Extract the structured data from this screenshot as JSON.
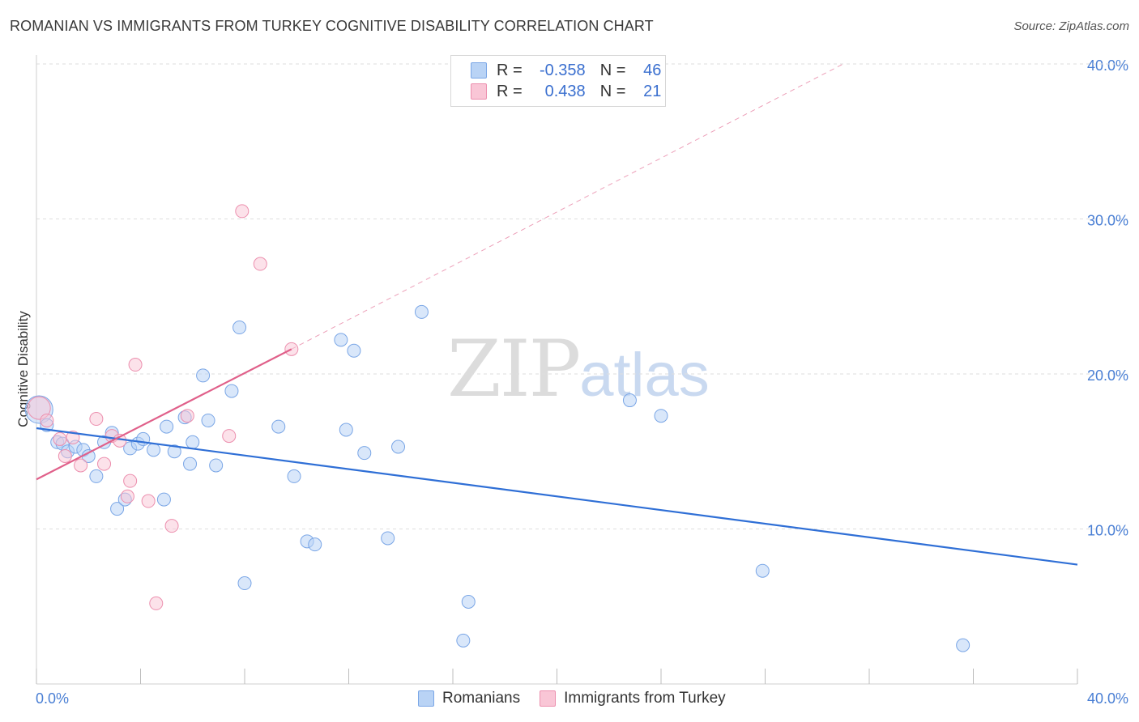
{
  "header": {
    "title": "ROMANIAN VS IMMIGRANTS FROM TURKEY COGNITIVE DISABILITY CORRELATION CHART",
    "source": "Source: ZipAtlas.com"
  },
  "watermark": {
    "zip": "ZIP",
    "atlas": "atlas"
  },
  "legend": {
    "r_label": "R =",
    "n_label": "N =",
    "rows": [
      {
        "r": "-0.358",
        "n": "46"
      },
      {
        "r": "0.438",
        "n": "21"
      }
    ]
  },
  "bottom_legend": {
    "items": [
      "Romanians",
      "Immigrants from Turkey"
    ]
  },
  "colors": {
    "blue_fill": "#b9d3f5",
    "blue_stroke": "#7aa6e6",
    "blue_line": "#2f6fd6",
    "pink_fill": "#f9c6d6",
    "pink_stroke": "#ec8fae",
    "pink_line": "#e0608a",
    "grid": "#dedede",
    "tick_text": "#4a7fd4"
  },
  "chart_data": {
    "type": "scatter",
    "title": "ROMANIAN VS IMMIGRANTS FROM TURKEY COGNITIVE DISABILITY CORRELATION CHART",
    "xlabel": "",
    "ylabel": "Cognitive Disability",
    "xlim": [
      0,
      40
    ],
    "ylim": [
      0,
      40
    ],
    "x_tick_labels": [
      "0.0%",
      "40.0%"
    ],
    "y_ticks": [
      10,
      20,
      30,
      40
    ],
    "y_tick_labels": [
      "10.0%",
      "20.0%",
      "30.0%",
      "40.0%"
    ],
    "grid": "horizontal dashed",
    "legend_position": "top-center",
    "series": [
      {
        "name": "Romanians",
        "color": "#b9d3f5",
        "r": -0.358,
        "n": 46,
        "trend": {
          "x": [
            0,
            40
          ],
          "y": [
            16.5,
            7.7
          ]
        },
        "points": [
          [
            0.1,
            17.7
          ],
          [
            0.4,
            16.7
          ],
          [
            0.8,
            15.6
          ],
          [
            1.0,
            15.5
          ],
          [
            1.2,
            15.0
          ],
          [
            1.5,
            15.3
          ],
          [
            1.8,
            15.1
          ],
          [
            2.0,
            14.7
          ],
          [
            2.3,
            13.4
          ],
          [
            2.6,
            15.6
          ],
          [
            2.9,
            16.2
          ],
          [
            3.1,
            11.3
          ],
          [
            3.4,
            11.9
          ],
          [
            3.6,
            15.2
          ],
          [
            3.9,
            15.5
          ],
          [
            4.1,
            15.8
          ],
          [
            4.5,
            15.1
          ],
          [
            4.9,
            11.9
          ],
          [
            5.0,
            16.6
          ],
          [
            5.3,
            15.0
          ],
          [
            5.7,
            17.2
          ],
          [
            5.9,
            14.2
          ],
          [
            6.0,
            15.6
          ],
          [
            6.4,
            19.9
          ],
          [
            6.6,
            17.0
          ],
          [
            6.9,
            14.1
          ],
          [
            7.5,
            18.9
          ],
          [
            7.8,
            23.0
          ],
          [
            8.0,
            6.5
          ],
          [
            9.3,
            16.6
          ],
          [
            9.9,
            13.4
          ],
          [
            10.4,
            9.2
          ],
          [
            10.7,
            9.0
          ],
          [
            11.7,
            22.2
          ],
          [
            11.9,
            16.4
          ],
          [
            12.2,
            21.5
          ],
          [
            12.6,
            14.9
          ],
          [
            13.5,
            9.4
          ],
          [
            13.9,
            15.3
          ],
          [
            14.8,
            24.0
          ],
          [
            16.4,
            2.8
          ],
          [
            16.6,
            5.3
          ],
          [
            22.8,
            18.3
          ],
          [
            24.0,
            17.3
          ],
          [
            27.9,
            7.3
          ],
          [
            35.6,
            2.5
          ]
        ]
      },
      {
        "name": "Immigrants from Turkey",
        "color": "#f9c6d6",
        "r": 0.438,
        "n": 21,
        "trend": {
          "x": [
            0,
            9.8
          ],
          "y": [
            13.2,
            21.6
          ]
        },
        "trend_extension": {
          "x": [
            9.8,
            31.0
          ],
          "y": [
            21.6,
            40.0
          ]
        },
        "points": [
          [
            0.1,
            17.8
          ],
          [
            0.4,
            17.0
          ],
          [
            0.9,
            15.8
          ],
          [
            1.1,
            14.7
          ],
          [
            1.4,
            15.9
          ],
          [
            1.7,
            14.1
          ],
          [
            2.3,
            17.1
          ],
          [
            2.6,
            14.2
          ],
          [
            2.9,
            16.0
          ],
          [
            3.2,
            15.7
          ],
          [
            3.5,
            12.1
          ],
          [
            3.6,
            13.1
          ],
          [
            3.8,
            20.6
          ],
          [
            4.3,
            11.8
          ],
          [
            4.6,
            5.2
          ],
          [
            5.2,
            10.2
          ],
          [
            5.8,
            17.3
          ],
          [
            7.4,
            16.0
          ],
          [
            7.9,
            30.5
          ],
          [
            8.6,
            27.1
          ],
          [
            9.8,
            21.6
          ]
        ]
      }
    ]
  }
}
